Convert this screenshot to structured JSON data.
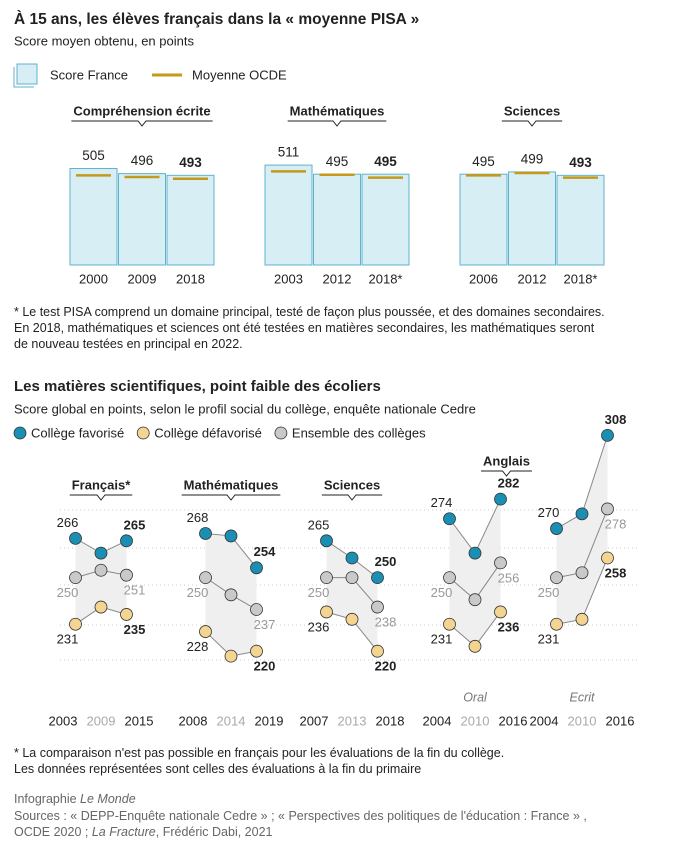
{
  "header": {
    "title": "À 15 ans, les élèves français dans la « moyenne PISA »",
    "subtitle": "Score moyen obtenu, en points"
  },
  "chart_data": [
    {
      "type": "bar",
      "title": "Compréhension écrite",
      "categories": [
        "2000",
        "2009",
        "2018"
      ],
      "series": [
        {
          "name": "Score France",
          "color": "#d8eef5",
          "edgecolor": "#5fb3cc",
          "values": [
            505,
            496,
            493
          ]
        },
        {
          "name": "Moyenne OCDE",
          "color": "#c49a1a",
          "values": [
            493,
            490,
            487
          ]
        }
      ],
      "ylim": [
        335,
        520
      ]
    },
    {
      "type": "bar",
      "title": "Mathématiques",
      "categories": [
        "2003",
        "2012",
        "2018*"
      ],
      "series": [
        {
          "name": "Score France",
          "color": "#d8eef5",
          "edgecolor": "#5fb3cc",
          "values": [
            511,
            495,
            495
          ]
        },
        {
          "name": "Moyenne OCDE",
          "color": "#c49a1a",
          "values": [
            500,
            494,
            489
          ]
        }
      ],
      "ylim": [
        335,
        520
      ]
    },
    {
      "type": "bar",
      "title": "Sciences",
      "categories": [
        "2006",
        "2012",
        "2018*"
      ],
      "series": [
        {
          "name": "Score France",
          "color": "#d8eef5",
          "edgecolor": "#5fb3cc",
          "values": [
            495,
            499,
            493
          ]
        },
        {
          "name": "Moyenne OCDE",
          "color": "#c49a1a",
          "values": [
            493,
            497,
            489
          ]
        }
      ],
      "ylim": [
        335,
        520
      ]
    },
    {
      "type": "dot",
      "title": "Français*",
      "categories": [
        "2003",
        "2009",
        "2015"
      ],
      "series": [
        {
          "name": "Collège favorisé",
          "color": "#1b8fb3",
          "values": [
            266,
            260,
            265
          ]
        },
        {
          "name": "Collège défavorisé",
          "color": "#f3d591",
          "values": [
            231,
            238,
            235
          ]
        },
        {
          "name": "Ensemble des collèges",
          "color": "#c9c9c9",
          "values": [
            250,
            253,
            251
          ]
        }
      ],
      "ylim": [
        205,
        311
      ]
    },
    {
      "type": "dot",
      "title": "Mathématiques",
      "categories": [
        "2008",
        "2014",
        "2019"
      ],
      "series": [
        {
          "name": "Collège favorisé",
          "color": "#1b8fb3",
          "values": [
            268,
            267,
            254
          ]
        },
        {
          "name": "Collège défavorisé",
          "color": "#f3d591",
          "values": [
            228,
            218,
            220
          ]
        },
        {
          "name": "Ensemble des collèges",
          "color": "#c9c9c9",
          "values": [
            250,
            243,
            237
          ]
        }
      ],
      "ylim": [
        205,
        311
      ]
    },
    {
      "type": "dot",
      "title": "Sciences",
      "categories": [
        "2007",
        "2013",
        "2018"
      ],
      "series": [
        {
          "name": "Collège favorisé",
          "color": "#1b8fb3",
          "values": [
            265,
            258,
            250
          ]
        },
        {
          "name": "Collège défavorisé",
          "color": "#f3d591",
          "values": [
            236,
            233,
            220
          ]
        },
        {
          "name": "Ensemble des collèges",
          "color": "#c9c9c9",
          "values": [
            250,
            250,
            238
          ]
        }
      ],
      "ylim": [
        205,
        311
      ]
    },
    {
      "type": "dot",
      "title": "Anglais",
      "label": "Oral",
      "categories": [
        "2004",
        "2010",
        "2016"
      ],
      "series": [
        {
          "name": "Collège favorisé",
          "color": "#1b8fb3",
          "values": [
            274,
            260,
            282
          ]
        },
        {
          "name": "Collège défavorisé",
          "color": "#f3d591",
          "values": [
            231,
            222,
            236
          ]
        },
        {
          "name": "Ensemble des collèges",
          "color": "#c9c9c9",
          "values": [
            250,
            241,
            256
          ]
        }
      ],
      "ylim": [
        205,
        311
      ]
    },
    {
      "type": "dot",
      "label": "Ecrit",
      "categories": [
        "2004",
        "2010",
        "2016"
      ],
      "series": [
        {
          "name": "Collège favorisé",
          "color": "#1b8fb3",
          "values": [
            270,
            276,
            308
          ]
        },
        {
          "name": "Collège défavorisé",
          "color": "#f3d591",
          "values": [
            231,
            233,
            258
          ]
        },
        {
          "name": "Ensemble des collèges",
          "color": "#c9c9c9",
          "values": [
            250,
            252,
            278
          ]
        }
      ],
      "ylim": [
        205,
        311
      ]
    }
  ],
  "notes_top": [
    "* Le test PISA comprend un domaine principal, testé de façon plus poussée, et des domaines secondaires.",
    "En 2018, mathématiques et sciences ont été testées en matières secondaires, les mathématiques seront",
    "de nouveau testées en principal en 2022."
  ],
  "section": {
    "title": "Les matières scientifiques, point faible des écoliers",
    "subtitle": "Score global en points, selon le profil social du collège, enquête nationale Cedre"
  },
  "notes_bottom": [
    "* La comparaison n'est pas possible en français pour les évaluations de la fin du collège.",
    "Les données représentées sont celles des évaluations à la fin du primaire"
  ],
  "credit": {
    "text": "Infographie",
    "publication": "Le Monde"
  },
  "sources": [
    "Sources : « DEPP-Enquête nationale Cedre » ; « Perspectives des politiques de l'éducation : France » ,",
    "OCDE 2020 ;",
    "La Fracture",
    ", Frédéric Dabi, 2021"
  ]
}
